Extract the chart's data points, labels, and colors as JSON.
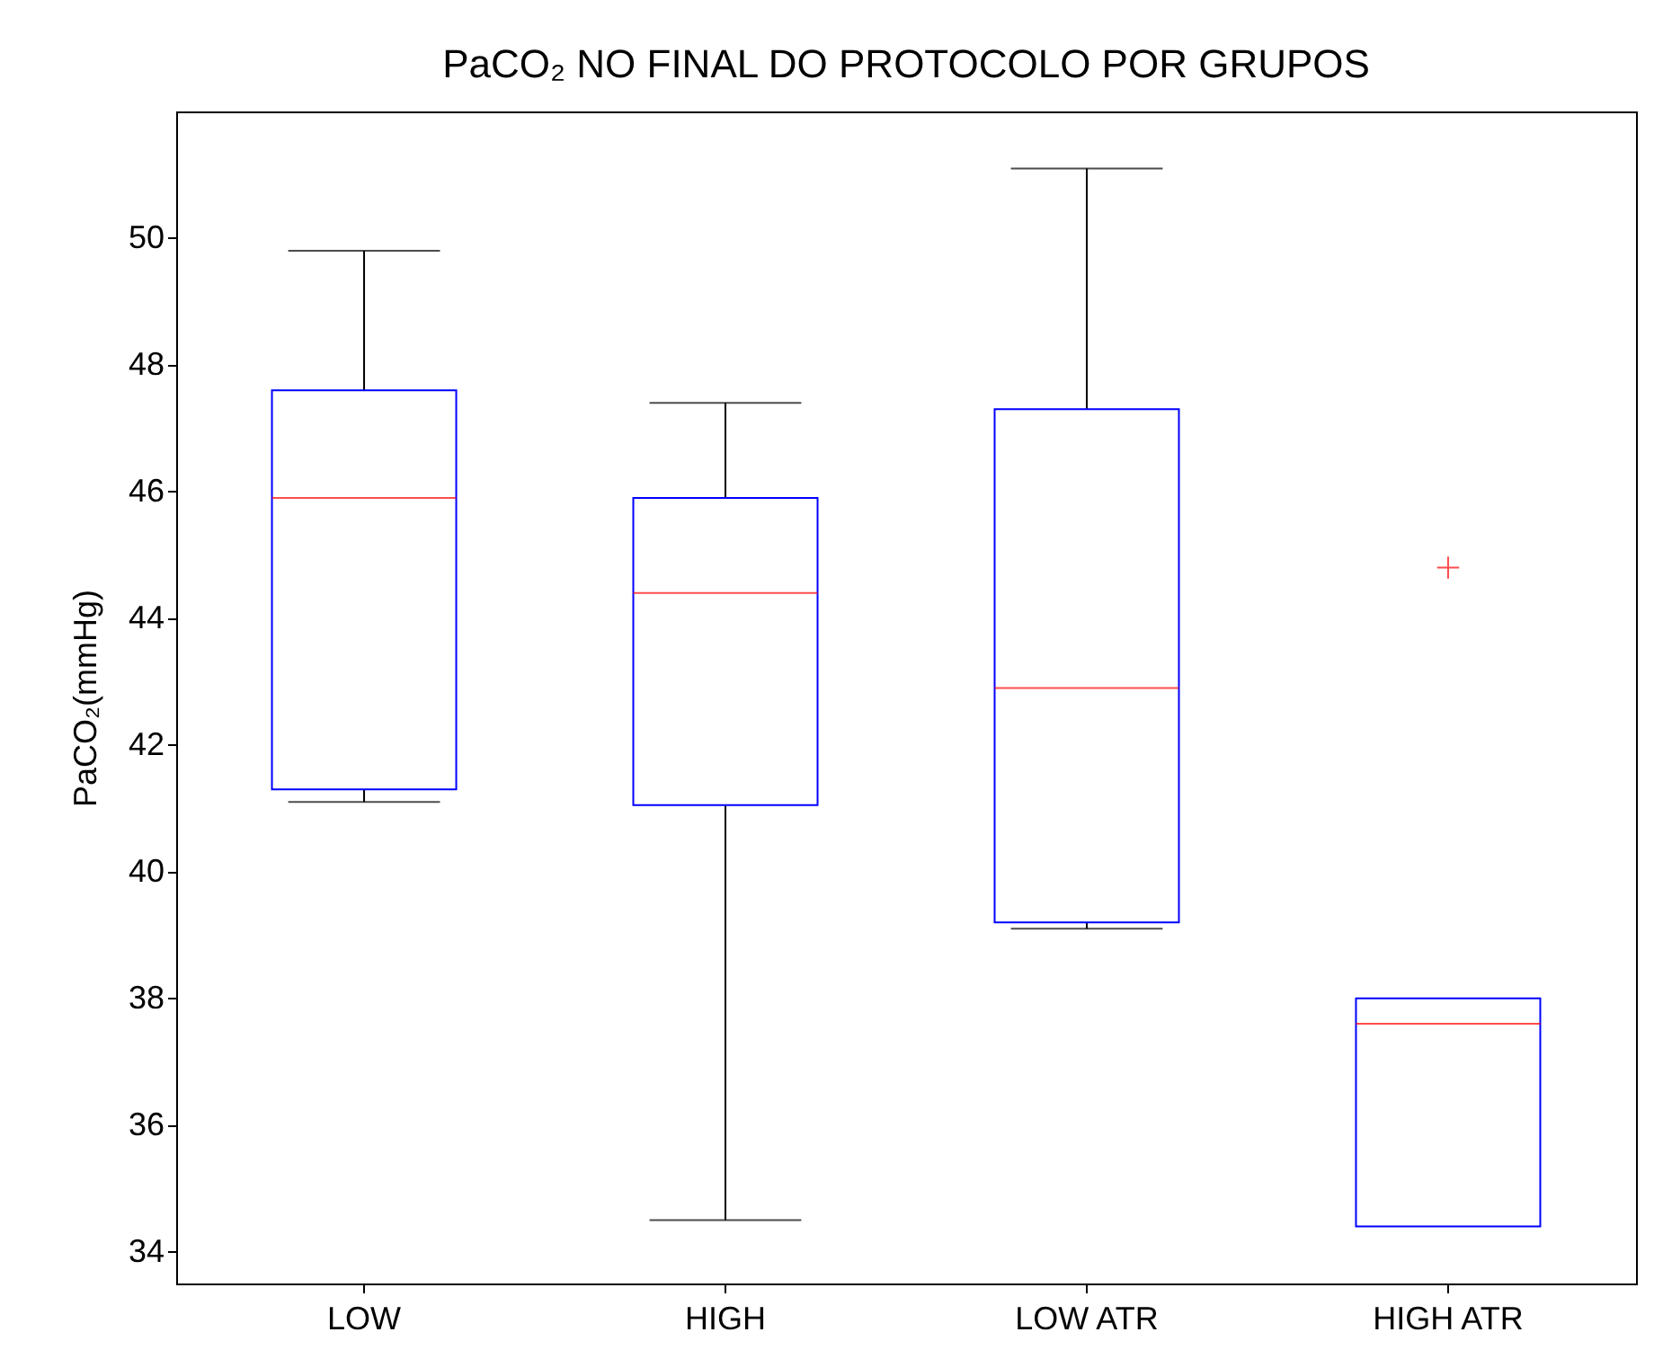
{
  "chart_data": {
    "type": "box",
    "title": "PaCO₂ NO FINAL DO PROTOCOLO POR GRUPOS",
    "ylabel": "PaCO₂(mmHg)",
    "categories": [
      "LOW",
      "HIGH",
      "LOW ATR",
      "HIGH ATR"
    ],
    "boxes": [
      {
        "low": 41.1,
        "q1": 41.3,
        "median": 45.9,
        "q3": 47.6,
        "high": 49.8
      },
      {
        "low": 34.5,
        "q1": 41.05,
        "median": 44.4,
        "q3": 45.9,
        "high": 47.4
      },
      {
        "low": 39.1,
        "q1": 39.2,
        "median": 42.9,
        "q3": 47.3,
        "high": 51.1
      },
      {
        "low": 34.4,
        "q1": 34.4,
        "median": 37.6,
        "q3": 38.0,
        "high": 38.0,
        "outliers": [
          44.8
        ]
      }
    ],
    "color": "#0000ff",
    "ylim": [
      33.5,
      52
    ],
    "yticks": [
      34,
      36,
      38,
      40,
      42,
      44,
      46,
      48,
      50
    ],
    "grid": false
  }
}
